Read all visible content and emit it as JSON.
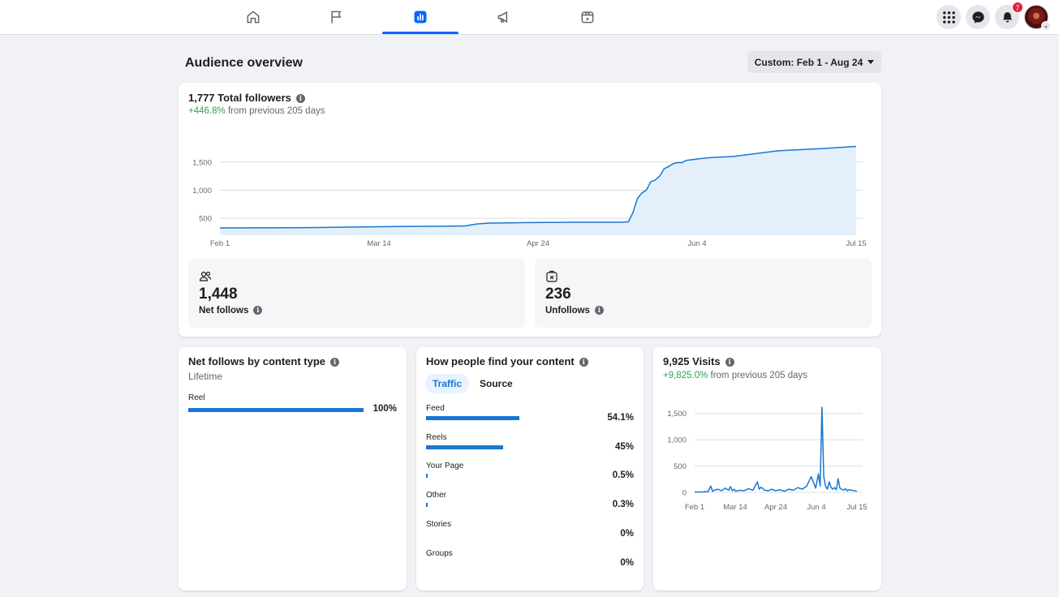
{
  "colors": {
    "accent": "#0866ff",
    "chart_line": "#1877d2",
    "chart_fill": "#e3f0fc",
    "positive": "#31a24c",
    "badge": "#e41e3f"
  },
  "nav": {
    "tabs": [
      {
        "icon": "home-icon"
      },
      {
        "icon": "flag-icon"
      },
      {
        "icon": "insights-icon",
        "active": true
      },
      {
        "icon": "megaphone-icon"
      },
      {
        "icon": "planner-icon"
      }
    ],
    "right": {
      "apps_icon": "grid-icon",
      "messenger_icon": "messenger-icon",
      "notifications_icon": "bell-icon",
      "notification_count": "7"
    }
  },
  "header": {
    "title": "Audience overview",
    "date_range": "Custom: Feb 1 - Aug 24"
  },
  "followers": {
    "title": "1,777 Total followers",
    "change": "+446.8%",
    "change_suffix": "from previous 205 days",
    "net_follows_value": "1,448",
    "net_follows_label": "Net follows",
    "unfollows_value": "236",
    "unfollows_label": "Unfollows"
  },
  "content_type": {
    "title": "Net follows by content type",
    "subtitle": "Lifetime",
    "rows": [
      {
        "label": "Reel",
        "pct": "100%",
        "value": 100
      }
    ]
  },
  "discovery": {
    "title": "How people find your content",
    "tabs": [
      "Traffic",
      "Source"
    ],
    "rows": [
      {
        "label": "Feed",
        "pct": "54.1%",
        "value": 54.1
      },
      {
        "label": "Reels",
        "pct": "45%",
        "value": 45
      },
      {
        "label": "Your Page",
        "pct": "0.5%",
        "value": 0.5
      },
      {
        "label": "Other",
        "pct": "0.3%",
        "value": 0.3
      },
      {
        "label": "Stories",
        "pct": "0%",
        "value": 0
      },
      {
        "label": "Groups",
        "pct": "0%",
        "value": 0
      }
    ]
  },
  "visits": {
    "title": "9,925 Visits",
    "change": "+9,825.0%",
    "change_suffix": "from previous 205 days"
  },
  "chart_data": [
    {
      "type": "area",
      "title": "1,777 Total followers",
      "x_ticks": [
        "Feb 1",
        "Mar 14",
        "Apr 24",
        "Jun 4",
        "Jul 15"
      ],
      "y_ticks": [
        500,
        1000,
        1500
      ],
      "ylim": [
        200,
        1900
      ],
      "grid": true,
      "x_days": [
        0,
        20,
        40,
        60,
        80,
        100,
        110,
        115,
        120,
        140,
        160,
        180,
        183,
        185,
        187,
        189,
        191,
        193,
        195,
        197,
        199,
        201,
        203,
        205,
        207,
        209,
        211,
        215,
        220,
        230,
        240,
        250,
        260,
        270,
        285
      ],
      "y": [
        330,
        332,
        335,
        345,
        355,
        360,
        365,
        400,
        415,
        425,
        430,
        430,
        440,
        600,
        850,
        950,
        1000,
        1150,
        1180,
        1250,
        1380,
        1420,
        1470,
        1490,
        1490,
        1530,
        1540,
        1560,
        1580,
        1600,
        1650,
        1700,
        1720,
        1740,
        1777
      ]
    },
    {
      "type": "line",
      "title": "9,925 Visits",
      "x_ticks": [
        "Feb 1",
        "Mar 14",
        "Apr 24",
        "Jun 4",
        "Jul 15"
      ],
      "y_ticks": [
        0,
        500,
        1000,
        1500
      ],
      "ylim": [
        0,
        1650
      ],
      "grid": true,
      "x_days": [
        0,
        5,
        10,
        15,
        18,
        20,
        22,
        26,
        30,
        34,
        38,
        40,
        42,
        44,
        46,
        50,
        55,
        60,
        65,
        70,
        72,
        74,
        78,
        82,
        86,
        90,
        95,
        100,
        105,
        110,
        115,
        120,
        125,
        130,
        135,
        138,
        140,
        142,
        144,
        146,
        148,
        150,
        152,
        154,
        156,
        158,
        160,
        162,
        164,
        166,
        168,
        170,
        172,
        175,
        178,
        181
      ],
      "y": [
        5,
        8,
        10,
        15,
        120,
        20,
        40,
        60,
        30,
        80,
        40,
        110,
        30,
        60,
        20,
        40,
        30,
        70,
        40,
        200,
        60,
        100,
        40,
        30,
        60,
        30,
        50,
        20,
        60,
        40,
        90,
        60,
        120,
        300,
        80,
        350,
        120,
        1620,
        300,
        120,
        60,
        200,
        100,
        60,
        90,
        50,
        260,
        80,
        60,
        40,
        70,
        30,
        50,
        40,
        30,
        20
      ]
    }
  ]
}
